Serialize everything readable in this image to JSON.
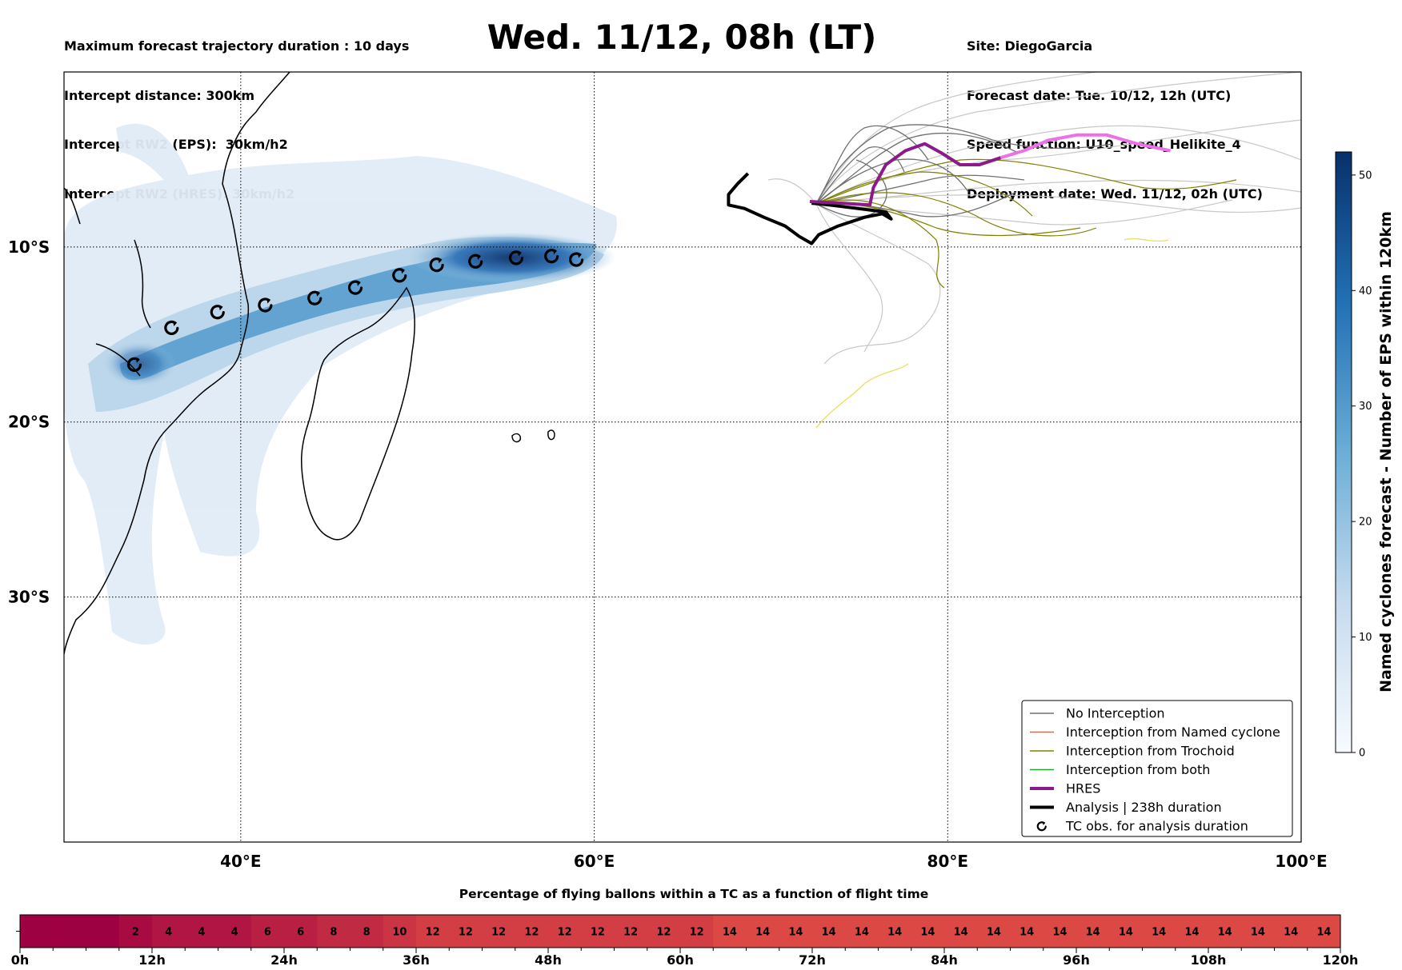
{
  "header": {
    "left_lines": [
      "Maximum forecast trajectory duration : 10 days",
      "Intercept distance: 300km",
      "Intercept RW2 (EPS):  30km/h2",
      "Intercept RW2 (HRES): 30km/h2"
    ],
    "title": "Wed. 11/12, 08h (LT)",
    "right_lines": [
      "Site: DiegoGarcia",
      "Forecast date: Tue. 10/12, 12h (UTC)",
      "Speed function: U10_speed_Helikite_4",
      "Deployment date: Wed. 11/12, 02h (UTC)"
    ]
  },
  "colors": {
    "no_interception": "#707070",
    "named_cyclone": "#ff5a1f",
    "trochoid": "#808000",
    "both": "#2ca02c",
    "hres": "#8b1a8b",
    "analysis": "#000000",
    "density_dark": "#08306b",
    "density_light": "#deebf7"
  },
  "chart_data": [
    {
      "type": "map",
      "icons": {
        "tc_marker": "cyclone-symbol-icon"
      },
      "map": {
        "lon_range": [
          30,
          100
        ],
        "lat_range": [
          -44,
          0
        ],
        "x_ticks": [
          "40°E",
          "60°E",
          "80°E",
          "100°E"
        ],
        "x_tick_values": [
          40,
          60,
          80,
          100
        ],
        "y_ticks": [
          "10°S",
          "20°S",
          "30°S"
        ],
        "y_tick_values": [
          -10,
          -20,
          -30
        ],
        "grid": true
      },
      "legend": {
        "placement": "bottom-right",
        "entries": [
          "No Interception",
          "Interception from Named cyclone",
          "Interception from Trochoid",
          "Interception from both",
          "HRES",
          "Analysis | 238h duration",
          "TC obs. for analysis duration"
        ]
      },
      "colorbar": {
        "label": "Named cyclones forecast - Number of EPS within 120km",
        "min": 0,
        "max": 52,
        "ticks": [
          "0",
          "10",
          "20",
          "30",
          "40",
          "50"
        ],
        "tick_values": [
          0,
          10,
          20,
          30,
          40,
          50
        ]
      },
      "tc_observations": [
        {
          "lon": 34.0,
          "lat": -16.7
        },
        {
          "lon": 36.1,
          "lat": -14.6
        },
        {
          "lon": 38.7,
          "lat": -13.7
        },
        {
          "lon": 41.4,
          "lat": -13.3
        },
        {
          "lon": 44.2,
          "lat": -12.9
        },
        {
          "lon": 46.5,
          "lat": -12.3
        },
        {
          "lon": 49.0,
          "lat": -11.6
        },
        {
          "lon": 51.1,
          "lat": -11.0
        },
        {
          "lon": 53.3,
          "lat": -10.8
        },
        {
          "lon": 55.6,
          "lat": -10.6
        },
        {
          "lon": 57.6,
          "lat": -10.5
        },
        {
          "lon": 59.0,
          "lat": -10.7
        }
      ],
      "hres_track": [
        {
          "lon": 72.2,
          "lat": -7.4
        },
        {
          "lon": 74.0,
          "lat": -7.5
        },
        {
          "lon": 75.6,
          "lat": -7.6
        },
        {
          "lon": 75.8,
          "lat": -6.6
        },
        {
          "lon": 76.5,
          "lat": -5.3
        },
        {
          "lon": 77.6,
          "lat": -4.5
        },
        {
          "lon": 78.7,
          "lat": -4.1
        },
        {
          "lon": 79.6,
          "lat": -4.6
        },
        {
          "lon": 80.7,
          "lat": -5.3
        },
        {
          "lon": 81.8,
          "lat": -5.3
        },
        {
          "lon": 83.0,
          "lat": -4.9
        },
        {
          "lon": 84.3,
          "lat": -4.5
        },
        {
          "lon": 85.7,
          "lat": -3.9
        },
        {
          "lon": 87.3,
          "lat": -3.6
        },
        {
          "lon": 89.0,
          "lat": -3.6
        },
        {
          "lon": 90.7,
          "lat": -4.1
        },
        {
          "lon": 92.6,
          "lat": -4.5
        }
      ],
      "analysis_track": [
        {
          "lon": 68.7,
          "lat": -5.8
        },
        {
          "lon": 68.1,
          "lat": -6.4
        },
        {
          "lon": 67.6,
          "lat": -7.0
        },
        {
          "lon": 67.6,
          "lat": -7.6
        },
        {
          "lon": 68.5,
          "lat": -7.8
        },
        {
          "lon": 69.6,
          "lat": -8.3
        },
        {
          "lon": 70.8,
          "lat": -8.8
        },
        {
          "lon": 71.6,
          "lat": -9.4
        },
        {
          "lon": 72.3,
          "lat": -9.8
        },
        {
          "lon": 72.7,
          "lat": -9.3
        },
        {
          "lon": 73.8,
          "lat": -8.8
        },
        {
          "lon": 75.3,
          "lat": -8.3
        },
        {
          "lon": 76.3,
          "lat": -8.1
        },
        {
          "lon": 76.8,
          "lat": -8.4
        },
        {
          "lon": 76.5,
          "lat": -8.0
        },
        {
          "lon": 74.9,
          "lat": -7.8
        },
        {
          "lon": 73.3,
          "lat": -7.6
        },
        {
          "lon": 72.3,
          "lat": -7.5
        }
      ]
    },
    {
      "type": "heatmap",
      "title": "Percentage of flying ballons within a TC as a function of flight time",
      "x_ticks": [
        "0h",
        "12h",
        "24h",
        "36h",
        "48h",
        "60h",
        "72h",
        "84h",
        "96h",
        "108h",
        "120h"
      ],
      "x_tick_values": [
        0,
        12,
        24,
        36,
        48,
        60,
        72,
        84,
        96,
        108,
        120
      ],
      "hours": [
        3,
        6,
        9,
        12,
        15,
        18,
        21,
        24,
        27,
        30,
        33,
        36,
        39,
        42,
        45,
        48,
        51,
        54,
        57,
        60,
        63,
        66,
        69,
        72,
        75,
        78,
        81,
        84,
        87,
        90,
        93,
        96,
        99,
        102,
        105,
        108,
        111,
        114,
        117,
        120
      ],
      "values": [
        0,
        0,
        0,
        2,
        4,
        4,
        4,
        6,
        6,
        8,
        8,
        10,
        12,
        12,
        12,
        12,
        12,
        12,
        12,
        12,
        12,
        14,
        14,
        14,
        14,
        14,
        14,
        14,
        14,
        14,
        14,
        14,
        14,
        14,
        14,
        14,
        14,
        14,
        14,
        14
      ],
      "labels": [
        "",
        "",
        "",
        "2",
        "4",
        "4",
        "4",
        "6",
        "6",
        "8",
        "8",
        "10",
        "12",
        "12",
        "12",
        "12",
        "12",
        "12",
        "12",
        "12",
        "12",
        "14",
        "14",
        "14",
        "14",
        "14",
        "14",
        "14",
        "14",
        "14",
        "14",
        "14",
        "14",
        "14",
        "14",
        "14",
        "14",
        "14",
        "14",
        "14"
      ]
    }
  ]
}
